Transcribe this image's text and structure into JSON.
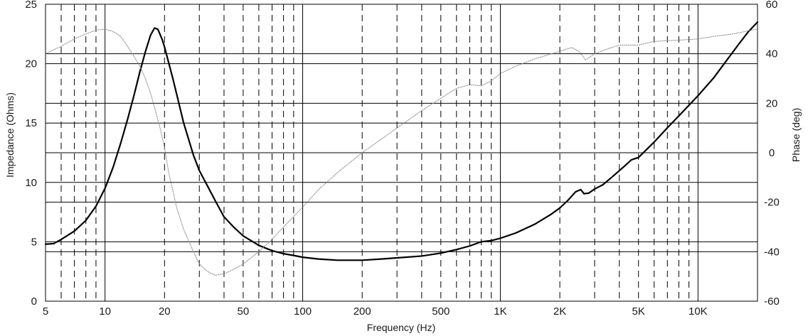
{
  "chart_data": {
    "type": "line",
    "xlabel": "Frequency (Hz)",
    "ylabel": "Impedance (Ohms)",
    "y2label": "Phase (deg)",
    "x_scale": "log",
    "xlim": [
      5,
      20000
    ],
    "ylim": [
      0,
      25
    ],
    "y2lim": [
      -60,
      60
    ],
    "grid": true,
    "x_ticks": [
      {
        "value": 5,
        "label": "5"
      },
      {
        "value": 10,
        "label": "10"
      },
      {
        "value": 20,
        "label": "20"
      },
      {
        "value": 50,
        "label": "50"
      },
      {
        "value": 100,
        "label": "100"
      },
      {
        "value": 200,
        "label": "200"
      },
      {
        "value": 500,
        "label": "500"
      },
      {
        "value": 1000,
        "label": "1K"
      },
      {
        "value": 2000,
        "label": "2K"
      },
      {
        "value": 5000,
        "label": "5K"
      },
      {
        "value": 10000,
        "label": "10K"
      }
    ],
    "y_ticks": [
      "0",
      "5",
      "10",
      "15",
      "20",
      "25"
    ],
    "y2_ticks": [
      "-60",
      "-40",
      "-20",
      "0",
      "20",
      "40",
      "60"
    ],
    "series": [
      {
        "axis": "left",
        "style": "solid",
        "color": "#000000",
        "points": [
          [
            5,
            4.8
          ],
          [
            5.5,
            4.85
          ],
          [
            6,
            5.2
          ],
          [
            7,
            5.9
          ],
          [
            8,
            6.8
          ],
          [
            9,
            8.0
          ],
          [
            10,
            9.5
          ],
          [
            11,
            11.3
          ],
          [
            12,
            13.3
          ],
          [
            13,
            15.3
          ],
          [
            14,
            17.3
          ],
          [
            15,
            19.3
          ],
          [
            16,
            21.0
          ],
          [
            17,
            22.4
          ],
          [
            17.8,
            23.0
          ],
          [
            18.5,
            22.9
          ],
          [
            19.5,
            22.0
          ],
          [
            20,
            21.4
          ],
          [
            22,
            18.8
          ],
          [
            25,
            15.0
          ],
          [
            28,
            12.3
          ],
          [
            30,
            11.0
          ],
          [
            33,
            9.7
          ],
          [
            36,
            8.5
          ],
          [
            40,
            7.1
          ],
          [
            45,
            6.2
          ],
          [
            50,
            5.5
          ],
          [
            60,
            4.7
          ],
          [
            70,
            4.25
          ],
          [
            80,
            4.0
          ],
          [
            90,
            3.85
          ],
          [
            100,
            3.7
          ],
          [
            120,
            3.55
          ],
          [
            150,
            3.45
          ],
          [
            200,
            3.45
          ],
          [
            250,
            3.55
          ],
          [
            300,
            3.65
          ],
          [
            400,
            3.8
          ],
          [
            500,
            4.05
          ],
          [
            600,
            4.35
          ],
          [
            700,
            4.65
          ],
          [
            800,
            5.0
          ],
          [
            900,
            5.1
          ],
          [
            1000,
            5.3
          ],
          [
            1200,
            5.75
          ],
          [
            1500,
            6.5
          ],
          [
            1800,
            7.3
          ],
          [
            2000,
            7.85
          ],
          [
            2200,
            8.5
          ],
          [
            2400,
            9.2
          ],
          [
            2550,
            9.4
          ],
          [
            2650,
            9.05
          ],
          [
            2800,
            9.1
          ],
          [
            3000,
            9.45
          ],
          [
            3300,
            9.8
          ],
          [
            3700,
            10.5
          ],
          [
            4200,
            11.3
          ],
          [
            4600,
            11.9
          ],
          [
            5000,
            12.1
          ],
          [
            6000,
            13.4
          ],
          [
            7000,
            14.6
          ],
          [
            8000,
            15.6
          ],
          [
            10000,
            17.3
          ],
          [
            12000,
            18.8
          ],
          [
            14000,
            20.3
          ],
          [
            16000,
            21.6
          ],
          [
            18000,
            22.7
          ],
          [
            20000,
            23.5
          ]
        ]
      },
      {
        "axis": "right",
        "style": "dotted",
        "color": "#8c8c8c",
        "points": [
          [
            5,
            40
          ],
          [
            6,
            43
          ],
          [
            7,
            46
          ],
          [
            8,
            48
          ],
          [
            9,
            49.5
          ],
          [
            10,
            50
          ],
          [
            11,
            49
          ],
          [
            12,
            47
          ],
          [
            13,
            43
          ],
          [
            14,
            39
          ],
          [
            15,
            35
          ],
          [
            16,
            30
          ],
          [
            17,
            24
          ],
          [
            18,
            17
          ],
          [
            19,
            10
          ],
          [
            20,
            2
          ],
          [
            21,
            -8
          ],
          [
            22,
            -15
          ],
          [
            23,
            -22
          ],
          [
            25,
            -31
          ],
          [
            28,
            -40
          ],
          [
            30,
            -45
          ],
          [
            33,
            -48
          ],
          [
            36,
            -49.5
          ],
          [
            40,
            -49
          ],
          [
            45,
            -47
          ],
          [
            50,
            -45
          ],
          [
            60,
            -40
          ],
          [
            70,
            -35
          ],
          [
            80,
            -30
          ],
          [
            100,
            -22
          ],
          [
            120,
            -15
          ],
          [
            150,
            -8
          ],
          [
            200,
            0
          ],
          [
            300,
            10
          ],
          [
            400,
            17
          ],
          [
            500,
            22
          ],
          [
            600,
            26
          ],
          [
            700,
            27.5
          ],
          [
            800,
            27
          ],
          [
            900,
            29
          ],
          [
            1000,
            32
          ],
          [
            1200,
            35
          ],
          [
            1500,
            38
          ],
          [
            2000,
            41
          ],
          [
            2300,
            42.5
          ],
          [
            2500,
            41
          ],
          [
            2700,
            37.5
          ],
          [
            3000,
            40
          ],
          [
            3500,
            42
          ],
          [
            4000,
            43.5
          ],
          [
            5000,
            43.5
          ],
          [
            6000,
            45
          ],
          [
            8000,
            45.5
          ],
          [
            10000,
            46
          ],
          [
            12000,
            47
          ],
          [
            15000,
            48
          ],
          [
            20000,
            50
          ]
        ]
      }
    ]
  }
}
